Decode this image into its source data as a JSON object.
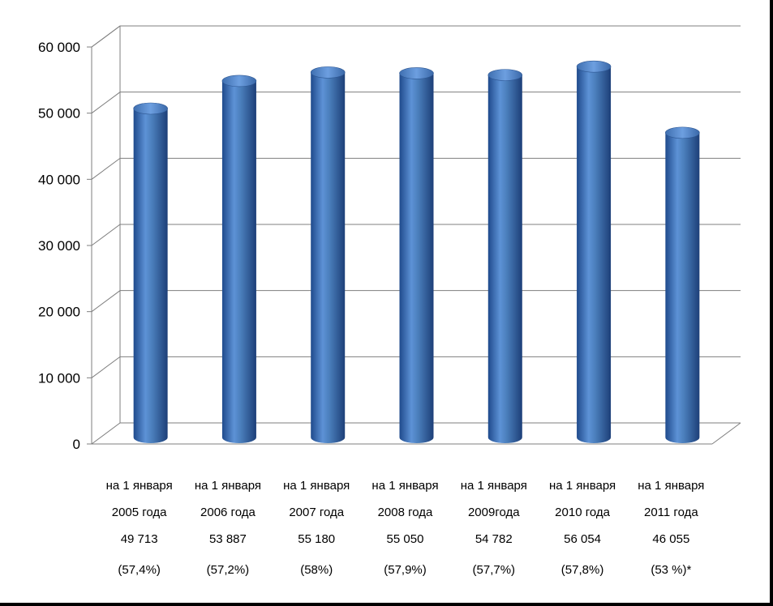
{
  "chart_data": {
    "type": "bar",
    "style": "3d-cylinder",
    "title": "",
    "xlabel": "",
    "ylabel": "",
    "ylim": [
      0,
      60000
    ],
    "yticks": [
      "0",
      "10 000",
      "20 000",
      "30 000",
      "40 000",
      "50 000",
      "60 000"
    ],
    "grid": true,
    "legend": "none",
    "bar_color": "#4a7ebb",
    "categories": [
      {
        "line1": "на 1 января",
        "line2": "2005 года",
        "line3": "49 713",
        "line4": "(57,4%)"
      },
      {
        "line1": "на 1 января",
        "line2": "2006 года",
        "line3": "53 887",
        "line4": "(57,2%)"
      },
      {
        "line1": "на 1 января",
        "line2": "2007 года",
        "line3": "55 180",
        "line4": "(58%)"
      },
      {
        "line1": "на 1 января",
        "line2": "2008 года",
        "line3": "55 050",
        "line4": "(57,9%)"
      },
      {
        "line1": "на 1 января",
        "line2": "2009года",
        "line3": "54 782",
        "line4": "(57,7%)"
      },
      {
        "line1": "на 1 января",
        "line2": "2010 года",
        "line3": "56 054",
        "line4": "(57,8%)"
      },
      {
        "line1": "на 1 января",
        "line2": "2011 года",
        "line3": "46 055",
        "line4": "(53 %)*"
      }
    ],
    "values": [
      49713,
      53887,
      55180,
      55050,
      54782,
      56054,
      46055
    ]
  }
}
